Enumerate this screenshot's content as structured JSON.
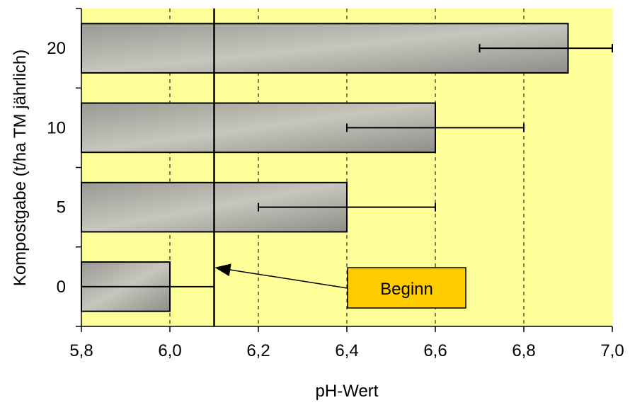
{
  "chart_data": {
    "type": "bar",
    "orientation": "horizontal",
    "categories": [
      "0",
      "5",
      "10",
      "20"
    ],
    "values": [
      6.0,
      6.4,
      6.6,
      6.9
    ],
    "error_low": [
      5.8,
      6.2,
      6.4,
      6.7
    ],
    "error_high": [
      6.1,
      6.6,
      6.8,
      7.0
    ],
    "xlabel": "pH-Wert",
    "ylabel": "Kompostgabe (t/ha TM jährlich)",
    "xlim": [
      5.8,
      7.0
    ],
    "x_ticks": [
      "5,8",
      "6,0",
      "6,2",
      "6,4",
      "6,6",
      "6,8",
      "7,0"
    ],
    "x_tick_values": [
      5.8,
      6.0,
      6.2,
      6.4,
      6.6,
      6.8,
      7.0
    ],
    "reference_line": {
      "x": 6.1
    },
    "annotation": {
      "text": "Beginn",
      "points_to_x": 6.1
    },
    "grid": "vertical dashed",
    "plot_background": "#FFFF99",
    "bar_color": "#B8B8B0",
    "annotation_box_color": "#FFCC00"
  }
}
